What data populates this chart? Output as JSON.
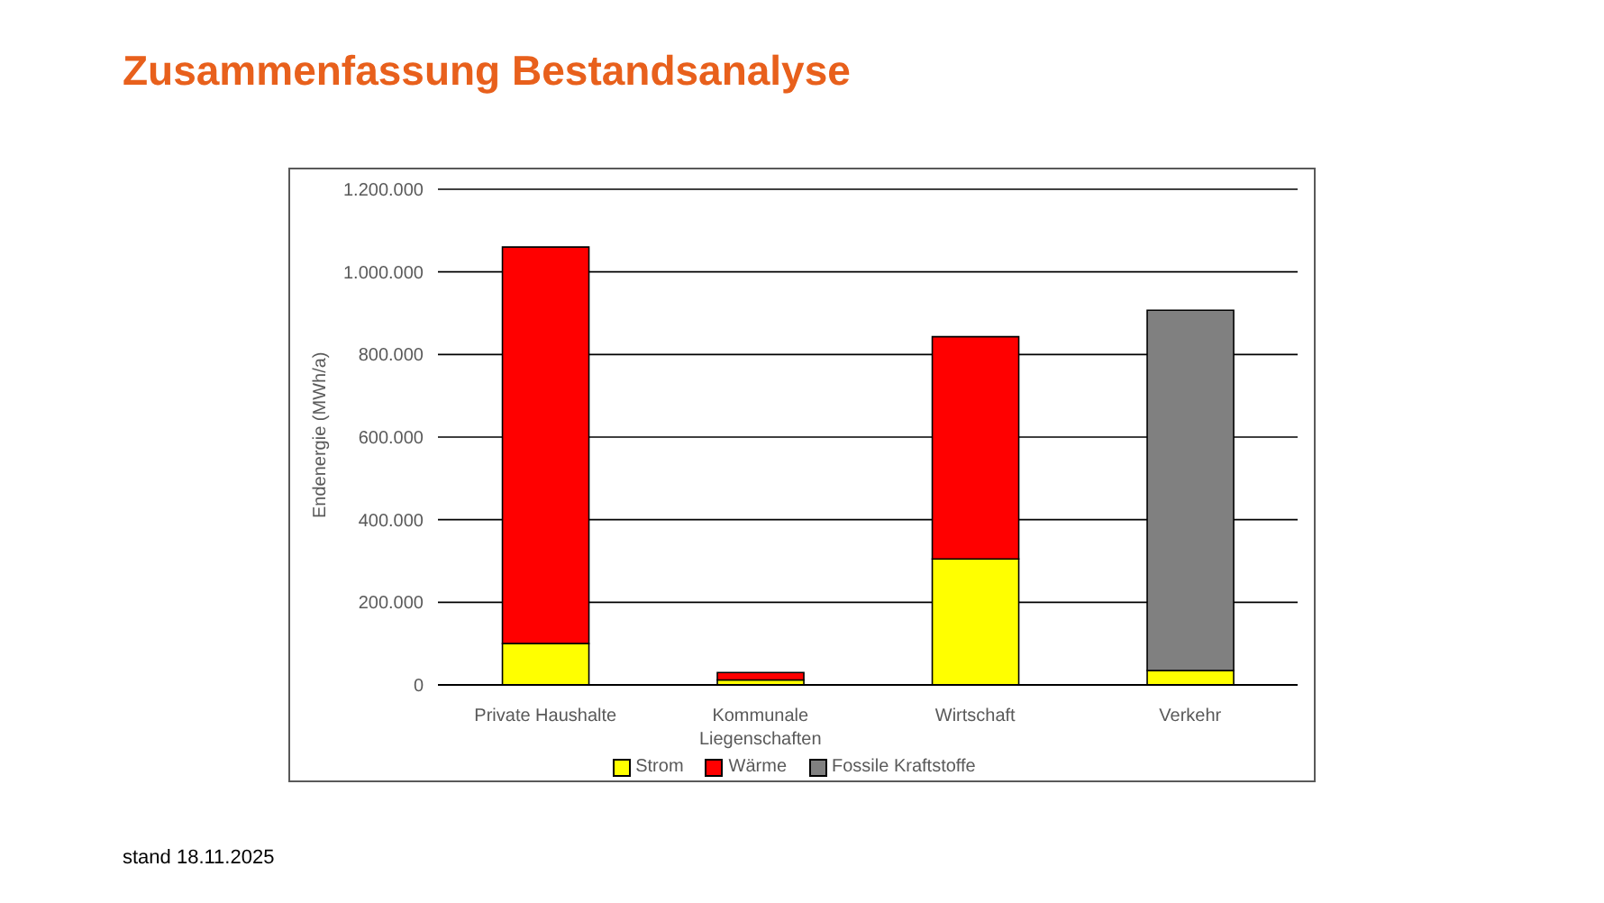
{
  "chart_data": {
    "type": "bar",
    "title": "Zusammenfassung Bestandsanalyse",
    "ylabel": "Endenergie (MWh/a)",
    "categories": [
      "Private Haushalte",
      "Kommunale Liegenschaften",
      "Wirtschaft",
      "Verkehr"
    ],
    "series": [
      {
        "name": "Strom",
        "color": "#ffff00",
        "values": [
          100000,
          12000,
          305000,
          35000
        ]
      },
      {
        "name": "Wärme",
        "color": "#ff0000",
        "values": [
          960000,
          18000,
          538000,
          null
        ]
      },
      {
        "name": "Fossile Kraftstoffe",
        "color": "#808080",
        "values": [
          null,
          null,
          null,
          872000
        ]
      }
    ],
    "stacked": true,
    "ylim": [
      0,
      1200000
    ],
    "yticks": [
      0,
      {
        "value": 200000,
        "label": "200.000"
      },
      {
        "value": 400000,
        "label": "400.000"
      },
      {
        "value": 600000,
        "label": "600.000"
      },
      {
        "value": 800000,
        "label": "800.000"
      },
      {
        "value": 1000000,
        "label": "1.000.000"
      },
      {
        "value": 1200000,
        "label": "1.200.000"
      }
    ],
    "grid": "y",
    "legend": "bottom",
    "annotations": [
      "stand 18.11.2025"
    ]
  }
}
